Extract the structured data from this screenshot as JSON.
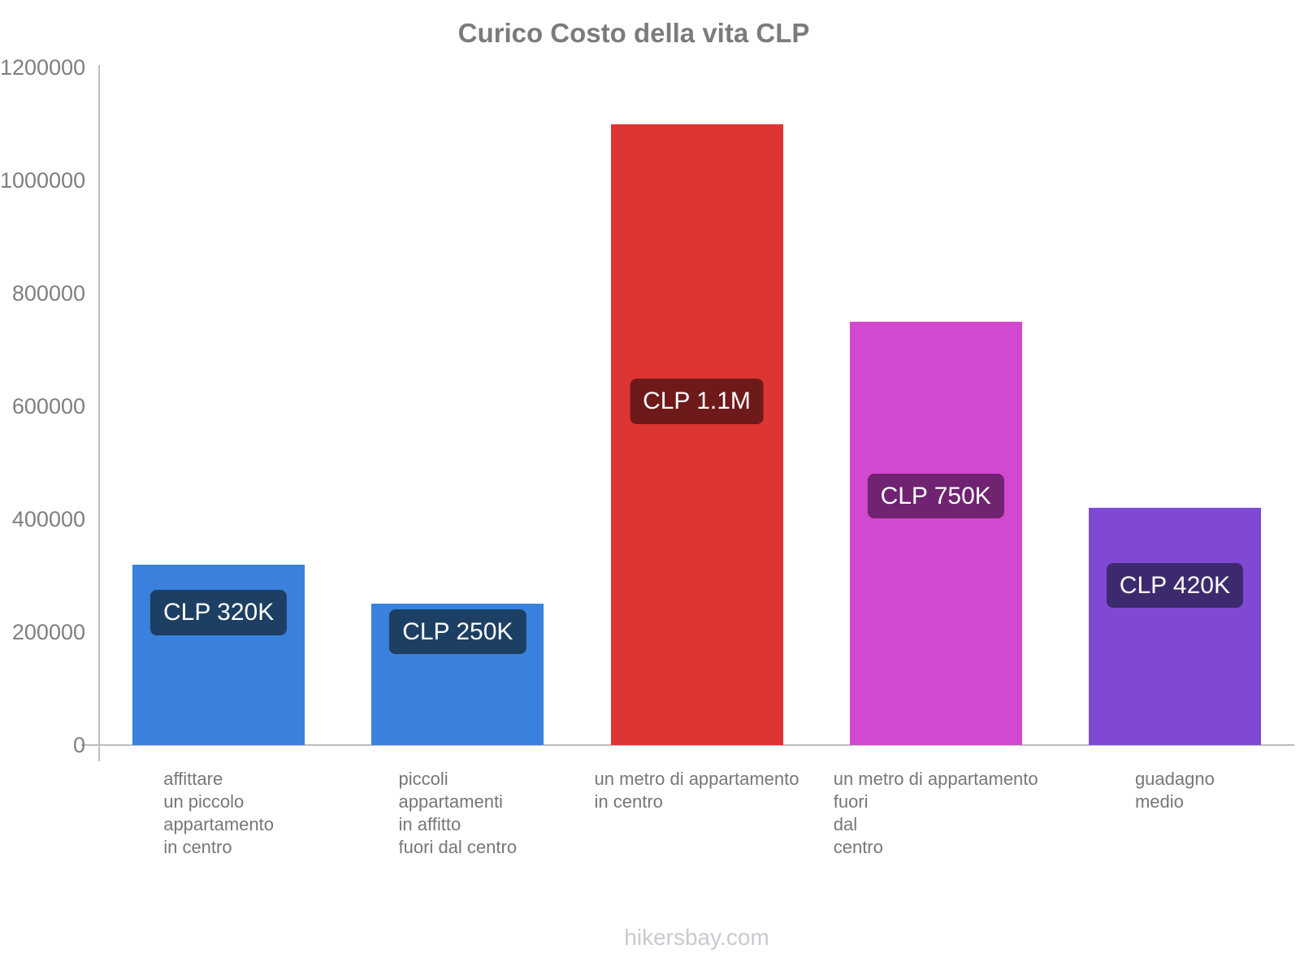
{
  "title": "Curico Costo della vita CLP",
  "footer": "hikersbay.com",
  "chart_data": {
    "type": "bar",
    "title": "Curico Costo della vita CLP",
    "categories": [
      [
        "affittare",
        "un piccolo",
        "appartamento",
        "in centro"
      ],
      [
        "piccoli",
        "appartamenti",
        "in affitto",
        "fuori dal centro"
      ],
      [
        "un metro di appartamento",
        "in centro"
      ],
      [
        "un metro di appartamento",
        "fuori",
        "dal",
        "centro"
      ],
      [
        "guadagno",
        "medio"
      ]
    ],
    "values": [
      320000,
      250000,
      1100000,
      750000,
      420000
    ],
    "value_labels": [
      "CLP 320K",
      "CLP 250K",
      "CLP 1.1M",
      "CLP 750K",
      "CLP 420K"
    ],
    "bar_colors": [
      "#3981dc",
      "#3981dc",
      "#dd3434",
      "#d348d0",
      "#7f49d4"
    ],
    "label_bg_colors": [
      "#1d3f63",
      "#1d3f63",
      "#6f1a1a",
      "#6f2371",
      "#3d2a6e"
    ],
    "ylabel": "",
    "xlabel": "",
    "ylim": [
      0,
      1200000
    ],
    "yticks": [
      0,
      200000,
      400000,
      600000,
      800000,
      1000000,
      1200000
    ],
    "ytick_labels": [
      "0",
      "200000",
      "400000",
      "600000",
      "800000",
      "1000000",
      "1200000"
    ],
    "grid": false,
    "legend": "none",
    "currency": "CLP"
  }
}
